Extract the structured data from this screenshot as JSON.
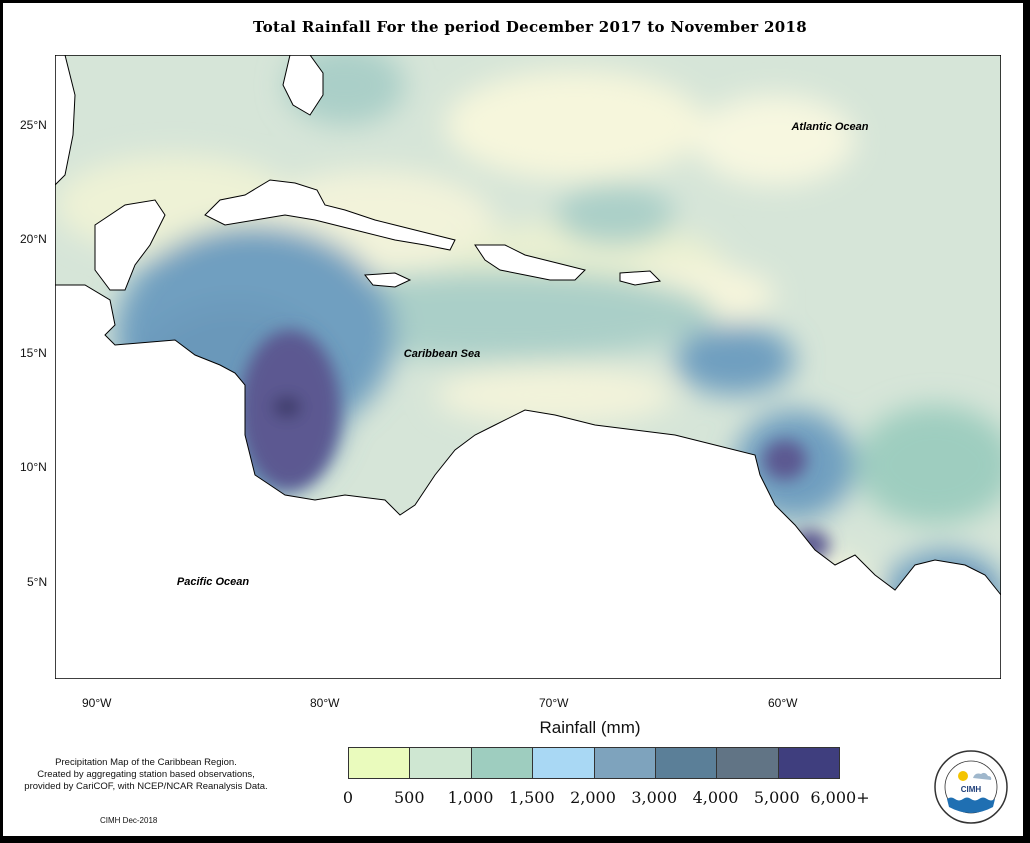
{
  "title": "Total Rainfall For the period December 2017 to November 2018",
  "map_labels": {
    "atlantic": "Atlantic Ocean",
    "caribbean": "Caribbean Sea",
    "pacific": "Pacific Ocean"
  },
  "axes": {
    "lat_ticks": [
      "25°N",
      "20°N",
      "15°N",
      "10°N",
      "5°N"
    ],
    "lon_ticks": [
      "90°W",
      "80°W",
      "70°W",
      "60°W"
    ],
    "x_title": "Rainfall (mm)"
  },
  "legend": {
    "colors": [
      "#fbf9e6",
      "#eafbbd",
      "#cfe7d2",
      "#9ecdbf",
      "#a9d8f4",
      "#7ea3bd",
      "#5b7f98",
      "#617485",
      "#3f3e7e"
    ],
    "labels": [
      "0",
      "500",
      "1,000",
      "1,500",
      "2,000",
      "3,000",
      "4,000",
      "5,000",
      "6,000+"
    ]
  },
  "note_lines": [
    "Precipitation Map of the Caribbean Region.",
    "Created by aggregating station based observations,",
    "provided by CariCOF, with NCEP/NCAR Reanalysis Data."
  ],
  "credit": "CIMH Dec-2018",
  "logo": {
    "text": "CIMH",
    "ring_text": "Caribbean Institute for Meteorology and Hydrology"
  }
}
